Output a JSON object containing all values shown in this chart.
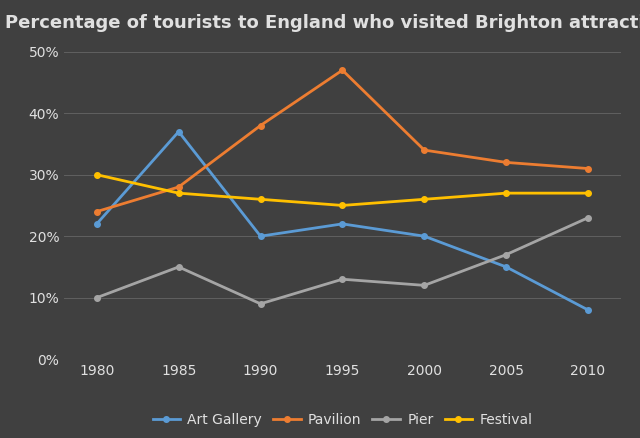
{
  "title": "Percentage of tourists to England who visited Brighton attractions",
  "years": [
    1980,
    1985,
    1990,
    1995,
    2000,
    2005,
    2010
  ],
  "series": {
    "Art Gallery": {
      "values": [
        22,
        37,
        20,
        22,
        20,
        15,
        8
      ],
      "color": "#5B9BD5",
      "marker": "o"
    },
    "Pavilion": {
      "values": [
        24,
        28,
        38,
        47,
        34,
        32,
        31
      ],
      "color": "#ED7D31",
      "marker": "o"
    },
    "Pier": {
      "values": [
        10,
        15,
        9,
        13,
        12,
        17,
        23
      ],
      "color": "#A5A5A5",
      "marker": "o"
    },
    "Festival": {
      "values": [
        30,
        27,
        26,
        25,
        26,
        27,
        27
      ],
      "color": "#FFC000",
      "marker": "o"
    }
  },
  "ylim": [
    0,
    52
  ],
  "yticks": [
    0,
    10,
    20,
    30,
    40,
    50
  ],
  "ytick_labels": [
    "0%",
    "10%",
    "20%",
    "30%",
    "40%",
    "50%"
  ],
  "background_color": "#404040",
  "plot_bg_color": "#404040",
  "grid_color": "#606060",
  "text_color": "#e0e0e0",
  "title_fontsize": 13,
  "axis_fontsize": 10,
  "legend_fontsize": 10,
  "linewidth": 2.0,
  "xlim": [
    1978,
    2012
  ]
}
